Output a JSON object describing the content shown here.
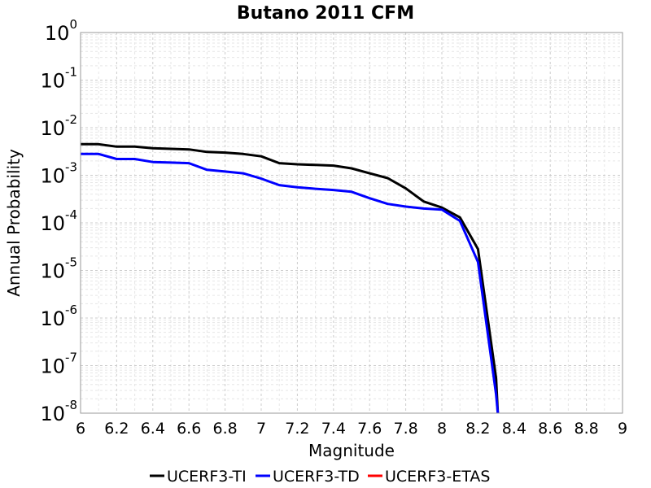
{
  "chart_data": {
    "type": "line",
    "title": "Butano 2011 CFM",
    "xlabel": "Magnitude",
    "ylabel": "Annual Probability",
    "xlim": [
      6,
      9
    ],
    "ylim": [
      1e-08,
      1
    ],
    "yscale": "log",
    "grid": true,
    "legend_position": "bottom",
    "x_ticks": [
      "6",
      "6.2",
      "6.4",
      "6.6",
      "6.8",
      "7",
      "7.2",
      "7.4",
      "7.6",
      "7.8",
      "8",
      "8.2",
      "8.4",
      "8.6",
      "8.8",
      "9"
    ],
    "y_ticks": [
      {
        "base": "10",
        "exp": "0"
      },
      {
        "base": "10",
        "exp": "-1"
      },
      {
        "base": "10",
        "exp": "-2"
      },
      {
        "base": "10",
        "exp": "-3"
      },
      {
        "base": "10",
        "exp": "-4"
      },
      {
        "base": "10",
        "exp": "-5"
      },
      {
        "base": "10",
        "exp": "-6"
      },
      {
        "base": "10",
        "exp": "-7"
      },
      {
        "base": "10",
        "exp": "-8"
      }
    ],
    "series": [
      {
        "name": "UCERF3-TI",
        "color": "#000000",
        "x": [
          6.0,
          6.1,
          6.2,
          6.3,
          6.4,
          6.5,
          6.6,
          6.7,
          6.8,
          6.9,
          7.0,
          7.1,
          7.2,
          7.3,
          7.4,
          7.5,
          7.6,
          7.7,
          7.8,
          7.9,
          8.0,
          8.1,
          8.2,
          8.3,
          8.31
        ],
        "y": [
          0.0045,
          0.0045,
          0.004,
          0.004,
          0.0037,
          0.0036,
          0.0035,
          0.0031,
          0.003,
          0.0028,
          0.0025,
          0.0018,
          0.0017,
          0.00165,
          0.0016,
          0.0014,
          0.0011,
          0.00087,
          0.00053,
          0.00028,
          0.00021,
          0.00013,
          2.8e-05,
          5.5e-08,
          1e-08
        ]
      },
      {
        "name": "UCERF3-TD",
        "color": "#0000ff",
        "x": [
          6.0,
          6.1,
          6.2,
          6.3,
          6.4,
          6.5,
          6.6,
          6.7,
          6.8,
          6.9,
          7.0,
          7.1,
          7.2,
          7.3,
          7.4,
          7.5,
          7.6,
          7.7,
          7.8,
          7.9,
          8.0,
          8.1,
          8.2,
          8.3,
          8.31
        ],
        "y": [
          0.0028,
          0.0028,
          0.0022,
          0.0022,
          0.0019,
          0.00185,
          0.0018,
          0.0013,
          0.0012,
          0.0011,
          0.00085,
          0.00062,
          0.00056,
          0.00052,
          0.00049,
          0.00045,
          0.00033,
          0.00025,
          0.00022,
          0.0002,
          0.00019,
          0.00011,
          1.5e-05,
          2.5e-08,
          1e-08
        ]
      },
      {
        "name": "UCERF3-ETAS",
        "color": "#ff0000",
        "x": [],
        "y": []
      }
    ]
  }
}
